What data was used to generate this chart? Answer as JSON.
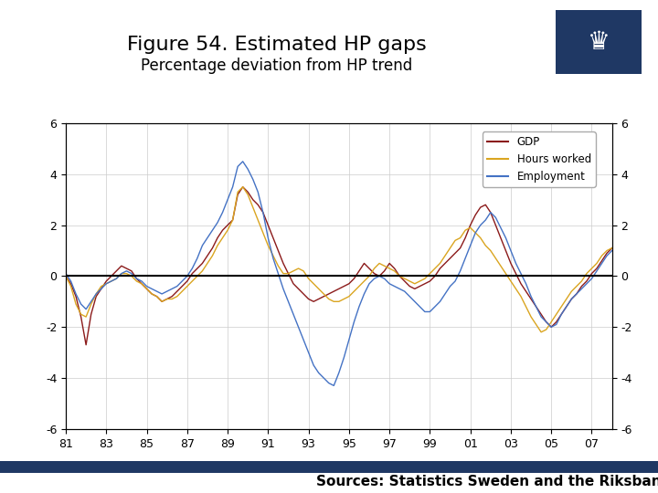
{
  "title": "Figure 54. Estimated HP gaps",
  "subtitle": "Percentage deviation from HP trend",
  "source_text": "Sources: Statistics Sweden and the Riksbank",
  "xlim": [
    1981,
    2008
  ],
  "ylim": [
    -6,
    6
  ],
  "xticks": [
    81,
    83,
    85,
    87,
    89,
    91,
    93,
    95,
    97,
    99,
    "01",
    "03",
    "05",
    "07"
  ],
  "xtick_vals": [
    1981,
    1983,
    1985,
    1987,
    1989,
    1991,
    1993,
    1995,
    1997,
    1999,
    2001,
    2003,
    2005,
    2007
  ],
  "yticks": [
    -6,
    -4,
    -2,
    0,
    2,
    4,
    6
  ],
  "gdp_color": "#8B1A1A",
  "hours_color": "#DAA520",
  "employment_color": "#4472C4",
  "zero_line_color": "#000000",
  "grid_color": "#CCCCCC",
  "footer_bar_color": "#1F3864",
  "logo_bg_color": "#1F3864",
  "title_fontsize": 16,
  "subtitle_fontsize": 12,
  "source_fontsize": 11,
  "gdp": [
    0.0,
    -0.3,
    -0.8,
    -1.6,
    -2.7,
    -1.5,
    -0.8,
    -0.5,
    -0.2,
    0.0,
    0.2,
    0.4,
    0.3,
    0.2,
    -0.1,
    -0.3,
    -0.5,
    -0.7,
    -0.8,
    -1.0,
    -0.9,
    -0.8,
    -0.6,
    -0.4,
    -0.2,
    0.1,
    0.3,
    0.5,
    0.8,
    1.1,
    1.5,
    1.8,
    2.0,
    2.2,
    3.2,
    3.5,
    3.3,
    3.0,
    2.8,
    2.5,
    2.0,
    1.5,
    1.0,
    0.5,
    0.1,
    -0.3,
    -0.5,
    -0.7,
    -0.9,
    -1.0,
    -0.9,
    -0.8,
    -0.7,
    -0.6,
    -0.5,
    -0.4,
    -0.3,
    -0.1,
    0.2,
    0.5,
    0.3,
    0.1,
    0.0,
    0.2,
    0.5,
    0.3,
    0.0,
    -0.2,
    -0.4,
    -0.5,
    -0.4,
    -0.3,
    -0.2,
    0.0,
    0.3,
    0.5,
    0.7,
    0.9,
    1.1,
    1.5,
    2.0,
    2.4,
    2.7,
    2.8,
    2.5,
    2.0,
    1.5,
    1.0,
    0.5,
    0.1,
    -0.3,
    -0.6,
    -0.9,
    -1.2,
    -1.5,
    -1.8,
    -2.0,
    -1.8,
    -1.5,
    -1.2,
    -0.9,
    -0.7,
    -0.4,
    -0.2,
    0.1,
    0.3,
    0.6,
    0.9,
    1.1,
    1.2
  ],
  "hours": [
    0.0,
    -0.4,
    -1.1,
    -1.5,
    -1.6,
    -1.1,
    -0.7,
    -0.4,
    -0.3,
    -0.2,
    -0.1,
    0.1,
    0.1,
    0.0,
    -0.2,
    -0.3,
    -0.5,
    -0.7,
    -0.8,
    -1.0,
    -0.9,
    -0.9,
    -0.8,
    -0.6,
    -0.4,
    -0.2,
    0.0,
    0.2,
    0.5,
    0.8,
    1.2,
    1.5,
    1.8,
    2.2,
    3.3,
    3.5,
    3.2,
    2.7,
    2.2,
    1.7,
    1.2,
    0.8,
    0.4,
    0.1,
    0.1,
    0.2,
    0.3,
    0.2,
    -0.1,
    -0.3,
    -0.5,
    -0.7,
    -0.9,
    -1.0,
    -1.0,
    -0.9,
    -0.8,
    -0.6,
    -0.4,
    -0.2,
    0.0,
    0.3,
    0.5,
    0.4,
    0.3,
    0.2,
    0.0,
    -0.1,
    -0.2,
    -0.3,
    -0.2,
    -0.1,
    0.1,
    0.3,
    0.5,
    0.8,
    1.1,
    1.4,
    1.5,
    1.8,
    1.9,
    1.7,
    1.5,
    1.2,
    1.0,
    0.7,
    0.4,
    0.1,
    -0.2,
    -0.5,
    -0.8,
    -1.2,
    -1.6,
    -1.9,
    -2.2,
    -2.1,
    -1.8,
    -1.5,
    -1.2,
    -0.9,
    -0.6,
    -0.4,
    -0.2,
    0.1,
    0.3,
    0.5,
    0.8,
    1.0,
    1.1,
    1.2
  ],
  "employment": [
    0.1,
    -0.2,
    -0.7,
    -1.1,
    -1.3,
    -1.0,
    -0.7,
    -0.5,
    -0.3,
    -0.2,
    -0.1,
    0.1,
    0.2,
    0.1,
    -0.1,
    -0.2,
    -0.4,
    -0.5,
    -0.6,
    -0.7,
    -0.6,
    -0.5,
    -0.4,
    -0.2,
    0.0,
    0.3,
    0.7,
    1.2,
    1.5,
    1.8,
    2.1,
    2.5,
    3.0,
    3.5,
    4.3,
    4.5,
    4.2,
    3.8,
    3.3,
    2.5,
    1.5,
    0.7,
    0.1,
    -0.5,
    -1.0,
    -1.5,
    -2.0,
    -2.5,
    -3.0,
    -3.5,
    -3.8,
    -4.0,
    -4.2,
    -4.3,
    -3.8,
    -3.2,
    -2.5,
    -1.8,
    -1.2,
    -0.7,
    -0.3,
    -0.1,
    0.0,
    -0.1,
    -0.3,
    -0.4,
    -0.5,
    -0.6,
    -0.8,
    -1.0,
    -1.2,
    -1.4,
    -1.4,
    -1.2,
    -1.0,
    -0.7,
    -0.4,
    -0.2,
    0.2,
    0.7,
    1.2,
    1.7,
    2.0,
    2.2,
    2.5,
    2.3,
    1.9,
    1.5,
    1.0,
    0.5,
    0.1,
    -0.3,
    -0.8,
    -1.2,
    -1.6,
    -1.8,
    -2.0,
    -1.9,
    -1.5,
    -1.2,
    -0.9,
    -0.7,
    -0.5,
    -0.3,
    -0.1,
    0.2,
    0.5,
    0.8,
    1.0,
    1.1
  ]
}
